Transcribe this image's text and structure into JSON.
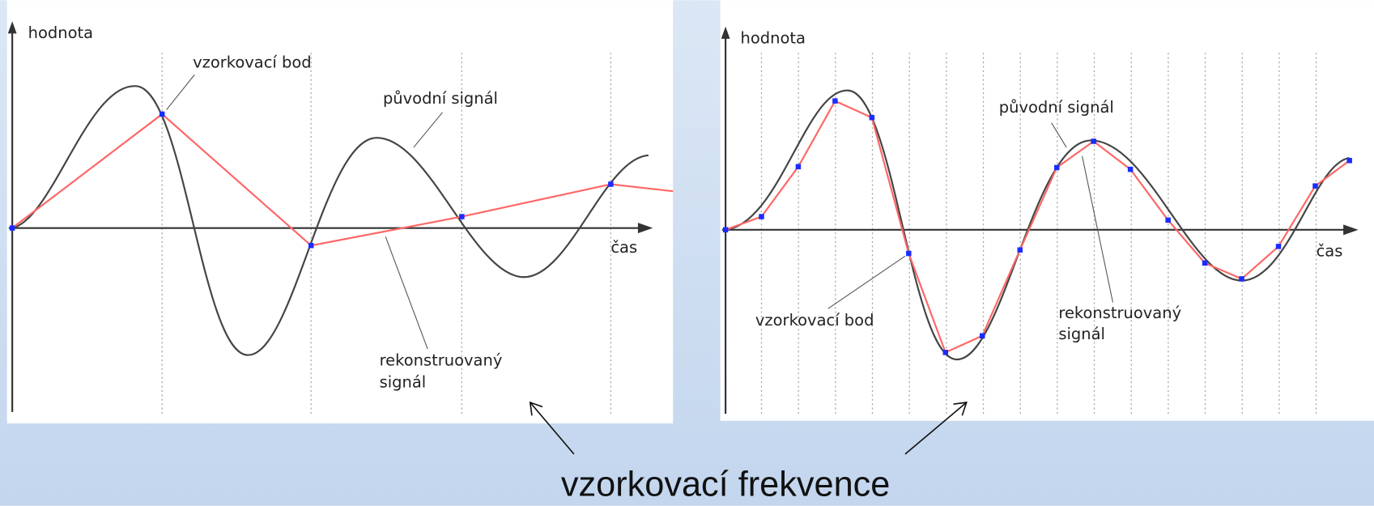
{
  "panels": [
    {
      "y_axis": "hodnota",
      "x_axis": "čas",
      "sample_label": "vzorkovací bod",
      "original_label": "původní signál",
      "reconstructed_label": [
        "rekonstruovaný",
        "signál"
      ]
    },
    {
      "y_axis": "hodnota",
      "x_axis": "čas",
      "sample_label": "vzorkovací bod",
      "original_label": "původní signál",
      "reconstructed_label": [
        "rekonstruovaný",
        "signál"
      ]
    }
  ],
  "caption": "vzorkovací frekvence"
}
